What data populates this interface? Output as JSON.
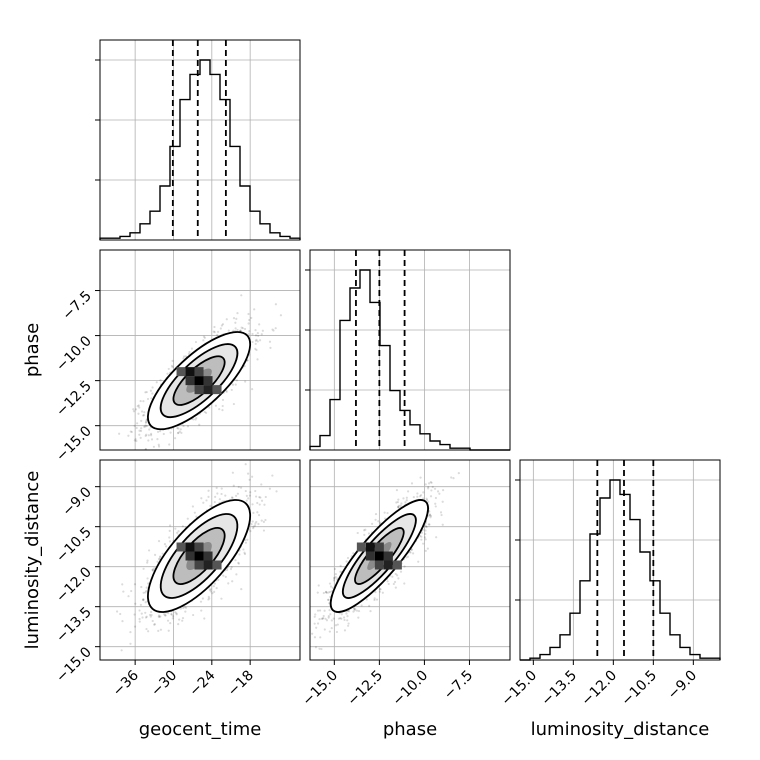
{
  "chart_data": {
    "type": "corner",
    "parameters": [
      "geocent_time",
      "phase",
      "luminosity_distance"
    ],
    "axis_labels": {
      "geocent_time": "geocent_time",
      "phase": "phase",
      "luminosity_distance": "luminosity_distance"
    },
    "ranges": {
      "geocent_time": [
        -41.5,
        -10.2
      ],
      "phase": [
        -16.35,
        -5.25
      ],
      "luminosity_distance": [
        -15.5,
        -8.0
      ]
    },
    "ticks": {
      "geocent_time": [
        -36,
        -30,
        -24,
        -18
      ],
      "phase": [
        -15.0,
        -12.5,
        -10.0,
        -7.5
      ],
      "luminosity_distance": [
        -15.0,
        -13.5,
        -12.0,
        -10.5,
        -9.0
      ]
    },
    "tick_labels": {
      "geocent_time": [
        "−36",
        "−30",
        "−24",
        "−18"
      ],
      "phase": [
        "−15.0",
        "−12.5",
        "−10.0",
        "−7.5"
      ],
      "luminosity_distance": [
        "−15.0",
        "−13.5",
        "−12.0",
        "−10.5",
        "−9.0"
      ]
    },
    "quantiles": {
      "geocent_time": [
        -30.1,
        -26.2,
        -21.8
      ],
      "phase": [
        -13.8,
        -12.5,
        -11.1
      ],
      "luminosity_distance": [
        -12.6,
        -11.6,
        -10.5
      ]
    },
    "histograms": {
      "geocent_time": {
        "range": [
          -41.5,
          -10.2
        ],
        "counts": [
          1,
          1,
          2,
          4,
          9,
          16,
          30,
          52,
          78,
          92,
          100,
          92,
          78,
          52,
          30,
          16,
          9,
          4,
          2,
          1
        ]
      },
      "phase": {
        "range": [
          -16.35,
          -5.25
        ],
        "counts": [
          2,
          8,
          28,
          72,
          90,
          100,
          82,
          58,
          33,
          22,
          14,
          9,
          5,
          3,
          1,
          1,
          0,
          0,
          0,
          0
        ]
      },
      "luminosity_distance": {
        "range": [
          -15.5,
          -8.0
        ],
        "counts": [
          0,
          1,
          3,
          7,
          14,
          26,
          44,
          70,
          90,
          100,
          92,
          78,
          60,
          44,
          26,
          14,
          7,
          3,
          1,
          1
        ]
      }
    },
    "correlation_2d": {
      "phase_vs_geocent_time": 0.75,
      "luminosity_distance_vs_geocent_time": 0.72,
      "luminosity_distance_vs_phase": 0.85
    },
    "contour_levels": [
      0.5,
      1.0,
      1.5,
      2.0
    ],
    "histogram_style": "step",
    "grid": true
  }
}
